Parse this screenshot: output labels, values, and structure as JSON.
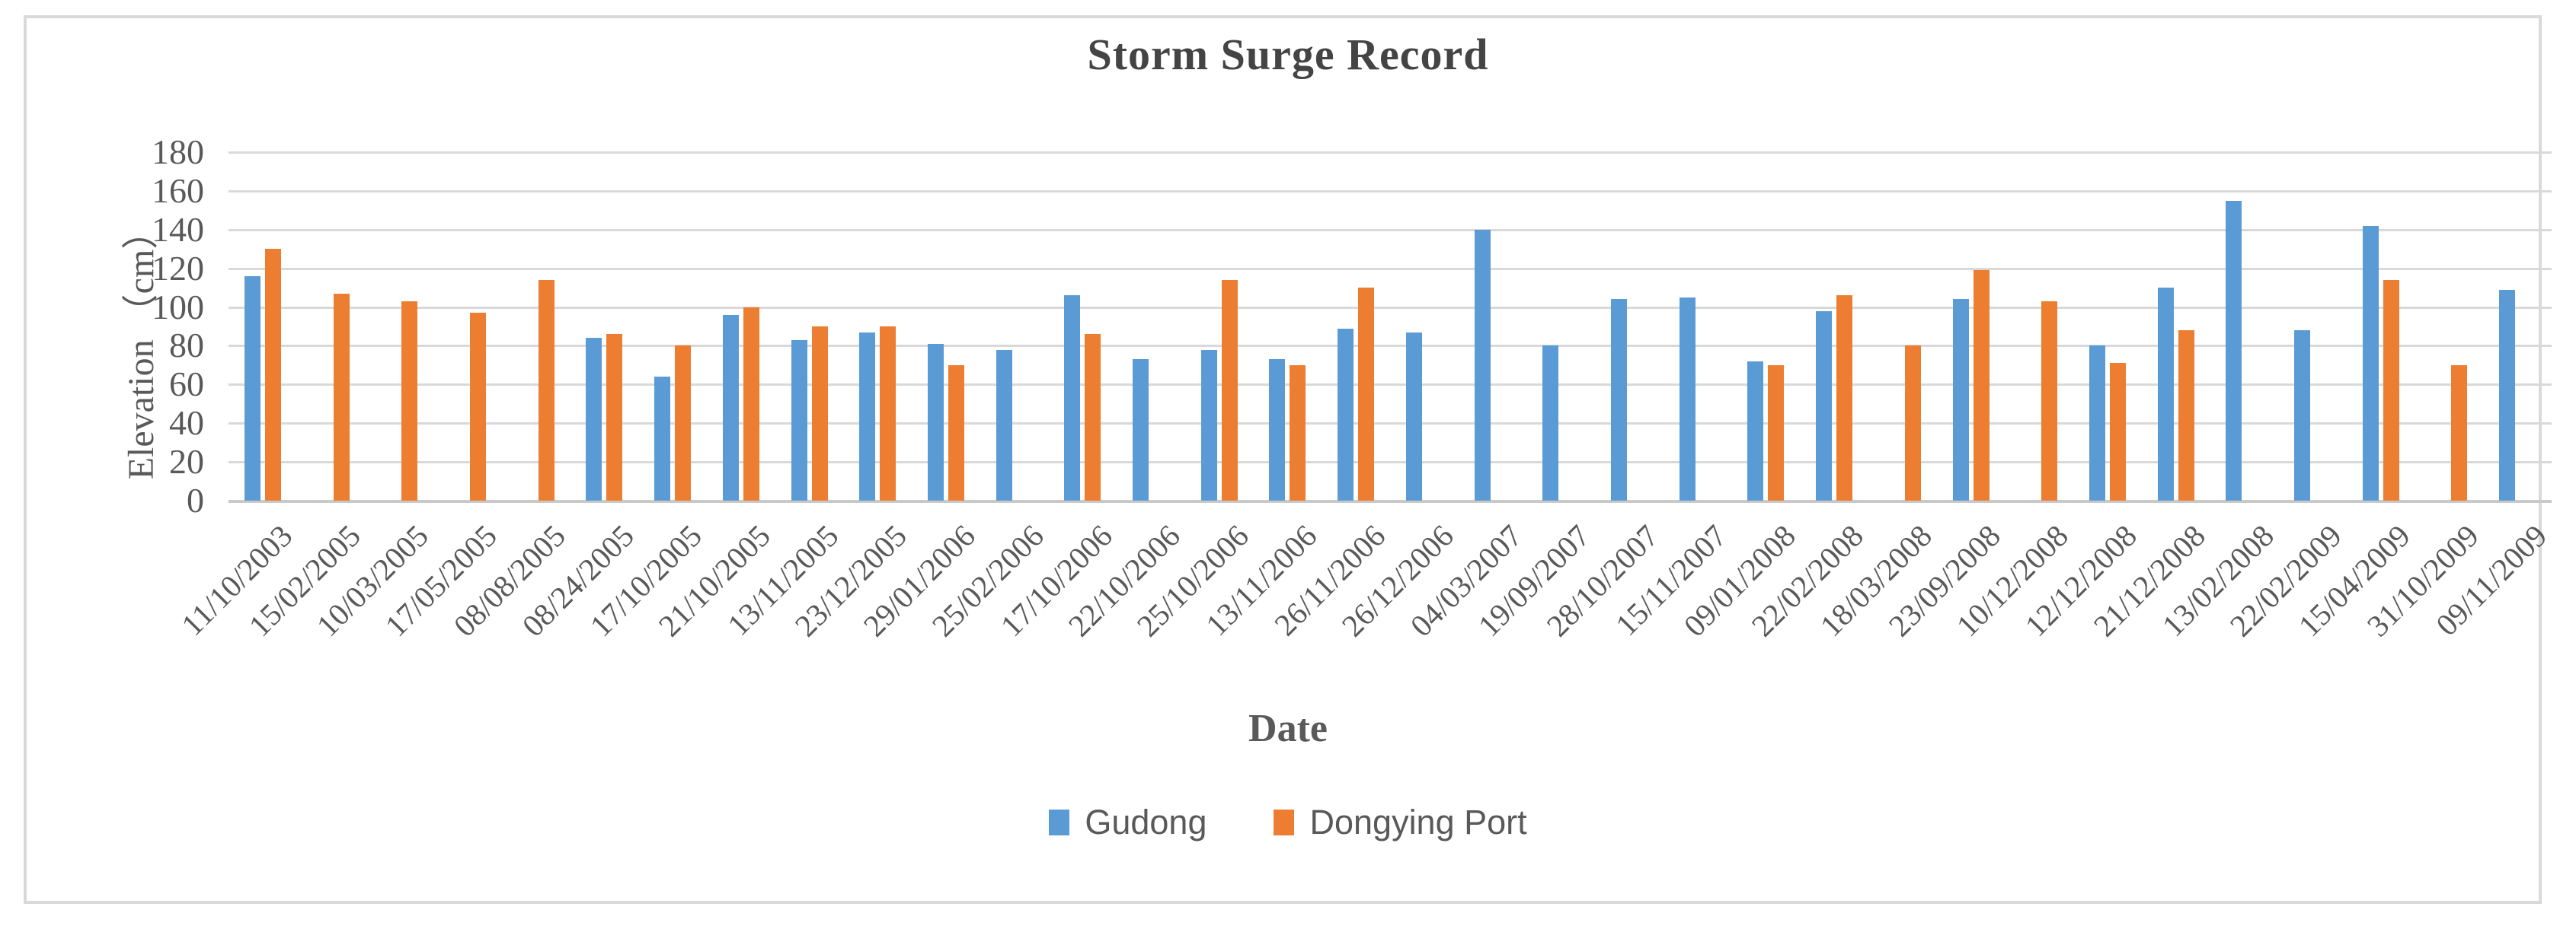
{
  "chart_data": {
    "type": "bar",
    "title": "Storm Surge Record",
    "xlabel": "Date",
    "ylabel": "Elevation （cm）",
    "ylim": [
      0,
      180
    ],
    "ytick_step": 20,
    "grid": true,
    "legend_position": "bottom-center",
    "categories": [
      "11/10/2003",
      "15/02/2005",
      "10/03/2005",
      "17/05/2005",
      "08/08/2005",
      "08/24/2005",
      "17/10/2005",
      "21/10/2005",
      "13/11/2005",
      "23/12/2005",
      "29/01/2006",
      "25/02/2006",
      "17/10/2006",
      "22/10/2006",
      "25/10/2006",
      "13/11/2006",
      "26/11/2006",
      "26/12/2006",
      "04/03/2007",
      "19/09/2007",
      "28/10/2007",
      "15/11/2007",
      "09/01/2008",
      "22/02/2008",
      "18/03/2008",
      "23/09/2008",
      "10/12/2008",
      "12/12/2008",
      "21/12/2008",
      "13/02/2008",
      "22/02/2009",
      "15/04/2009",
      "31/10/2009",
      "09/11/2009"
    ],
    "series": [
      {
        "name": "Gudong",
        "color": "#5B9BD5",
        "values": [
          116,
          null,
          null,
          null,
          null,
          84,
          64,
          96,
          83,
          87,
          81,
          78,
          106,
          73,
          78,
          73,
          89,
          87,
          140,
          80,
          104,
          105,
          72,
          98,
          null,
          104,
          null,
          80,
          110,
          155,
          88,
          142,
          null,
          109
        ]
      },
      {
        "name": "Dongying Port",
        "color": "#ED7D31",
        "values": [
          130,
          107,
          103,
          97,
          114,
          86,
          80,
          100,
          90,
          90,
          70,
          null,
          86,
          null,
          114,
          70,
          110,
          null,
          null,
          null,
          null,
          null,
          70,
          106,
          80,
          119,
          103,
          71,
          88,
          null,
          null,
          114,
          70,
          null
        ]
      }
    ],
    "colors": {
      "gudong_bar": "#5B9BD5",
      "dongying_port_bar": "#ED7D31",
      "gridline": "#D9D9D9",
      "axis_text": "#595959",
      "title_text": "#444444",
      "frame_border": "#D9D9D9"
    }
  }
}
